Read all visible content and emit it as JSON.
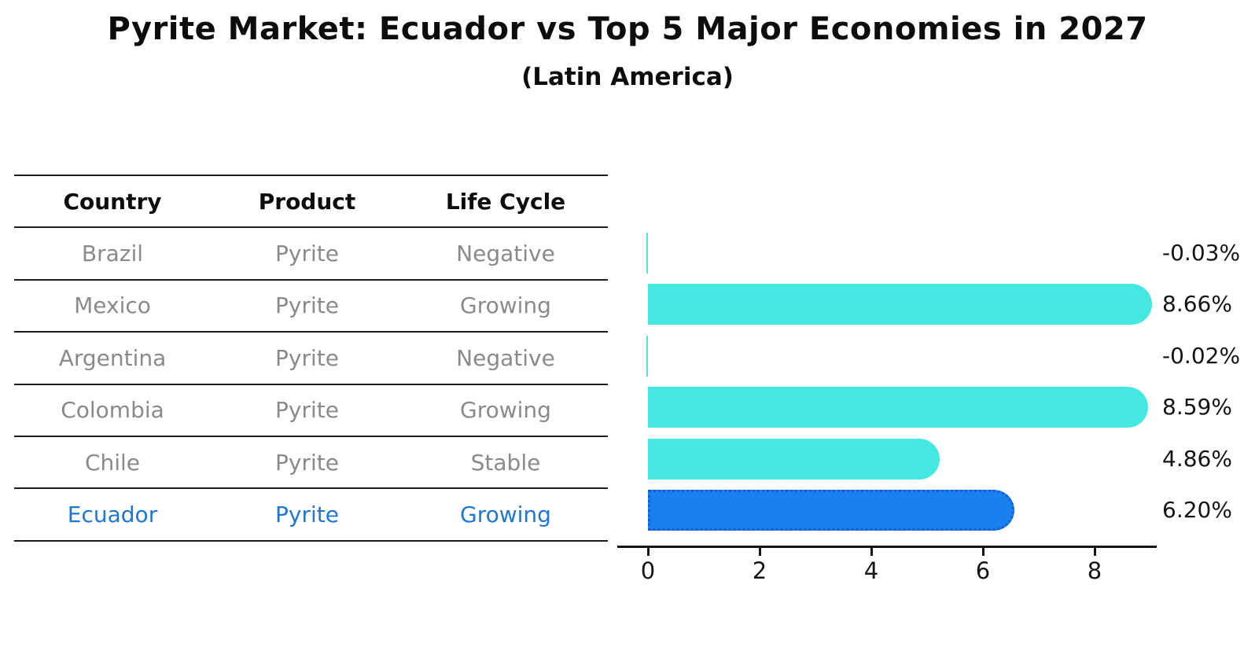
{
  "header": {
    "title": "Pyrite Market: Ecuador vs Top 5 Major Economies in 2027",
    "subtitle": "(Latin America)"
  },
  "table": {
    "headers": [
      "Country",
      "Product",
      "Life Cycle"
    ],
    "rows": [
      {
        "country": "Brazil",
        "product": "Pyrite",
        "life_cycle": "Negative",
        "highlight": false
      },
      {
        "country": "Mexico",
        "product": "Pyrite",
        "life_cycle": "Growing",
        "highlight": false
      },
      {
        "country": "Argentina",
        "product": "Pyrite",
        "life_cycle": "Negative",
        "highlight": false
      },
      {
        "country": "Colombia",
        "product": "Pyrite",
        "life_cycle": "Growing",
        "highlight": false
      },
      {
        "country": "Chile",
        "product": "Pyrite",
        "life_cycle": "Stable",
        "highlight": false
      },
      {
        "country": "Ecuador",
        "product": "Pyrite",
        "life_cycle": "Growing",
        "highlight": true
      }
    ]
  },
  "chart_data": {
    "type": "bar",
    "orientation": "horizontal",
    "title": "Pyrite Market: Ecuador vs Top 5 Major Economies in 2027",
    "subtitle": "(Latin America)",
    "categories": [
      "Brazil",
      "Mexico",
      "Argentina",
      "Colombia",
      "Chile",
      "Ecuador"
    ],
    "values": [
      -0.03,
      8.66,
      -0.02,
      8.59,
      4.86,
      6.2
    ],
    "value_labels": [
      "-0.03%",
      "8.66%",
      "-0.02%",
      "8.59%",
      "4.86%",
      "6.20%"
    ],
    "x_ticks": [
      0,
      2,
      4,
      6,
      8
    ],
    "xlim": [
      -0.55,
      9.1
    ],
    "grid": false,
    "legend": false,
    "highlight_index": 5,
    "colors": {
      "bar": "#45E8E1",
      "highlight_bar": "#1A80F0",
      "highlight_border": "#1060D0",
      "axis": "#141414",
      "value_label": "#141414",
      "muted_text": "#8a8a8a",
      "highlight_text": "#2176D2",
      "table_line": "#1c1c1c"
    }
  }
}
